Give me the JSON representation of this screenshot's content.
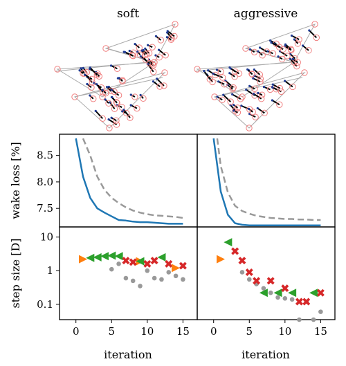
{
  "columns": [
    "soft",
    "aggressive"
  ],
  "layouts": [
    {
      "name": "soft"
    },
    {
      "name": "aggressive"
    }
  ],
  "colors": {
    "line_final": "#1f77b4",
    "line_dashed": "#999999",
    "layout_line": "#000000",
    "boundary": "#aaaaaa",
    "turbine_ring": "#f08080",
    "turbine_dot": "#1f3a93",
    "step_orange": "#ff7f0e",
    "step_green": "#2ca02c",
    "step_red": "#d62728",
    "step_gray": "#999999"
  },
  "chart_data": [
    {
      "type": "line",
      "panel": "soft",
      "title": "",
      "xlabel": "",
      "ylabel": "wake loss [%]",
      "xlim": [
        -2.3,
        17
      ],
      "ylim": [
        7.15,
        8.9
      ],
      "yticks": [
        "7.5",
        "8.0",
        "8.5"
      ],
      "ytick_values": [
        7.5,
        8.0,
        8.5
      ],
      "series": [
        {
          "style": "solid",
          "x": [
            0,
            1,
            2,
            3,
            4,
            5,
            6,
            7,
            8,
            9,
            10,
            11,
            12,
            13,
            14,
            15
          ],
          "y": [
            8.82,
            8.1,
            7.7,
            7.5,
            7.42,
            7.35,
            7.28,
            7.27,
            7.25,
            7.24,
            7.24,
            7.23,
            7.22,
            7.21,
            7.21,
            7.21
          ]
        },
        {
          "style": "dashed",
          "x": [
            1,
            2,
            3,
            4,
            5,
            6,
            7,
            8,
            9,
            10,
            11,
            12,
            13,
            14,
            15
          ],
          "y": [
            8.82,
            8.5,
            8.1,
            7.85,
            7.7,
            7.6,
            7.52,
            7.46,
            7.42,
            7.39,
            7.37,
            7.36,
            7.35,
            7.34,
            7.32
          ]
        }
      ]
    },
    {
      "type": "line",
      "panel": "aggressive",
      "title": "",
      "xlabel": "",
      "ylabel": "",
      "xlim": [
        -2.3,
        17
      ],
      "ylim": [
        7.15,
        8.9
      ],
      "series": [
        {
          "style": "solid",
          "x": [
            0,
            1,
            2,
            3,
            4,
            5,
            6,
            7,
            8,
            9,
            10,
            11,
            12,
            13,
            14,
            15
          ],
          "y": [
            8.82,
            7.82,
            7.38,
            7.22,
            7.19,
            7.18,
            7.18,
            7.18,
            7.18,
            7.18,
            7.18,
            7.18,
            7.18,
            7.18,
            7.18,
            7.18
          ]
        },
        {
          "style": "dashed",
          "x": [
            0.5,
            1,
            2,
            3,
            4,
            5,
            6,
            7,
            8,
            9,
            10,
            11,
            12,
            13,
            14,
            15
          ],
          "y": [
            8.82,
            8.3,
            7.8,
            7.55,
            7.45,
            7.4,
            7.36,
            7.34,
            7.32,
            7.31,
            7.3,
            7.3,
            7.29,
            7.29,
            7.28,
            7.28
          ]
        }
      ]
    },
    {
      "type": "scatter",
      "panel": "soft",
      "title": "",
      "xlabel": "iteration",
      "ylabel": "step size [D]",
      "xscale": "log-y",
      "xlim": [
        -2.3,
        17
      ],
      "ylim": [
        0.035,
        20
      ],
      "xticks": [
        "0",
        "5",
        "10",
        "15"
      ],
      "xtick_values": [
        0,
        5,
        10,
        15
      ],
      "yticks": [
        "0.1",
        "1",
        "10"
      ],
      "ytick_values": [
        0.1,
        1,
        10
      ],
      "series": [
        {
          "marker": "triangle-right",
          "color": "orange",
          "x": [
            1,
            9
          ],
          "y": [
            2.2,
            1.9
          ]
        },
        {
          "marker": "triangle-left",
          "color": "green",
          "x": [
            2,
            3,
            4,
            5,
            6,
            9,
            12
          ],
          "y": [
            2.4,
            2.5,
            2.7,
            2.8,
            2.7,
            1.9,
            2.5
          ]
        },
        {
          "marker": "x",
          "color": "red",
          "x": [
            7,
            8,
            10,
            11,
            13,
            15
          ],
          "y": [
            2.0,
            1.8,
            1.6,
            2.0,
            1.6,
            1.4
          ]
        },
        {
          "marker": "triangle-right",
          "color": "orange",
          "x": [
            14
          ],
          "y": [
            1.2
          ]
        },
        {
          "marker": "dot",
          "color": "gray",
          "x": [
            5,
            6,
            7,
            8,
            9,
            10,
            11,
            12,
            13,
            14,
            15
          ],
          "y": [
            1.1,
            1.6,
            0.6,
            0.5,
            0.35,
            1.0,
            0.6,
            0.55,
            0.9,
            0.7,
            0.55
          ]
        }
      ]
    },
    {
      "type": "scatter",
      "panel": "aggressive",
      "title": "",
      "xlabel": "iteration",
      "ylabel": "",
      "xlim": [
        -2.3,
        17
      ],
      "ylim": [
        0.035,
        20
      ],
      "xticks": [
        "0",
        "5",
        "10",
        "15"
      ],
      "xtick_values": [
        0,
        5,
        10,
        15
      ],
      "series": [
        {
          "marker": "triangle-right",
          "color": "orange",
          "x": [
            1
          ],
          "y": [
            2.2
          ]
        },
        {
          "marker": "triangle-left",
          "color": "green",
          "x": [
            2,
            7,
            9,
            11,
            14
          ],
          "y": [
            7.0,
            0.22,
            0.22,
            0.22,
            0.22
          ]
        },
        {
          "marker": "x",
          "color": "red",
          "x": [
            3,
            4,
            5,
            6,
            8,
            10,
            12,
            13,
            15
          ],
          "y": [
            3.8,
            2.0,
            0.9,
            0.5,
            0.5,
            0.3,
            0.12,
            0.12,
            0.22
          ]
        },
        {
          "marker": "dot",
          "color": "gray",
          "x": [
            4,
            5,
            6,
            7,
            8,
            9,
            10,
            11,
            12,
            13,
            14,
            15
          ],
          "y": [
            0.9,
            0.55,
            0.4,
            0.3,
            0.22,
            0.16,
            0.15,
            0.14,
            0.035,
            0.12,
            0.035,
            0.06
          ]
        }
      ]
    }
  ]
}
